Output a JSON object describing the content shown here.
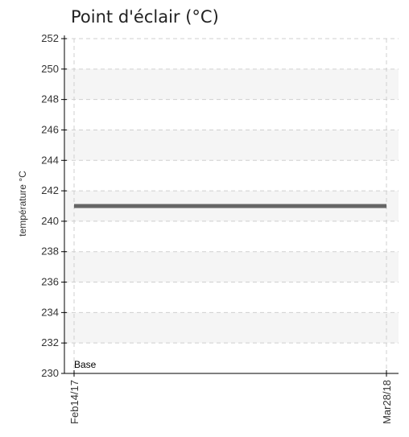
{
  "chart_data": {
    "type": "line",
    "title": "Point d'éclair (°C)",
    "ylabel": "température °C",
    "xlabel": "",
    "ylim": [
      230,
      252
    ],
    "yticks": [
      230,
      232,
      234,
      236,
      238,
      240,
      242,
      244,
      246,
      248,
      250,
      252
    ],
    "x": [
      "Feb14/17",
      "Mar28/18"
    ],
    "series": [
      {
        "values": [
          241,
          241
        ]
      }
    ],
    "annotation": "Base",
    "grid": true,
    "colors": {
      "line": "#666666",
      "band": "#f5f5f5",
      "grid": "#cfcfcf",
      "axis": "#000000"
    }
  }
}
